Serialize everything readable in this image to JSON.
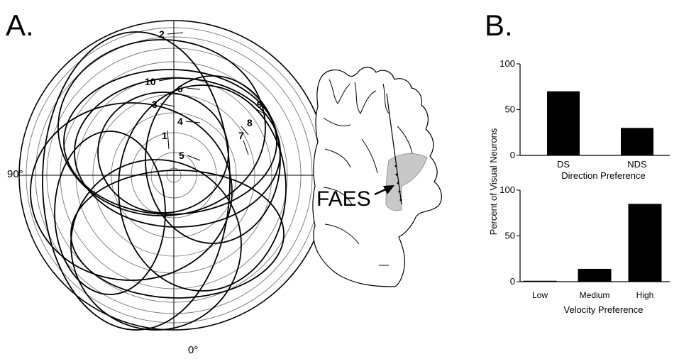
{
  "panel_a": {
    "letter": "A.",
    "axis_90": "90°",
    "axis_0": "0°",
    "structure_label": "FAES",
    "receptive_fields": [
      {
        "id": "1"
      },
      {
        "id": "2"
      },
      {
        "id": "3"
      },
      {
        "id": "4"
      },
      {
        "id": "5"
      },
      {
        "id": "6"
      },
      {
        "id": "7"
      },
      {
        "id": "8"
      },
      {
        "id": "9"
      },
      {
        "id": "10"
      }
    ]
  },
  "panel_b": {
    "letter": "B.",
    "ylabel": "Percent of Visual Neurons"
  },
  "chart_data": [
    {
      "type": "bar",
      "categories": [
        "DS",
        "NDS"
      ],
      "values": [
        70,
        30
      ],
      "xlabel": "Direction Preference",
      "ylim": [
        0,
        100
      ],
      "yticks": [
        0,
        50,
        100
      ],
      "bar_color": "#000000"
    },
    {
      "type": "bar",
      "categories": [
        "Low",
        "Medium",
        "High"
      ],
      "values": [
        1,
        14,
        85
      ],
      "xlabel": "Velocity Preference",
      "ylim": [
        0,
        100
      ],
      "yticks": [
        0,
        50,
        100
      ],
      "bar_color": "#000000"
    }
  ]
}
